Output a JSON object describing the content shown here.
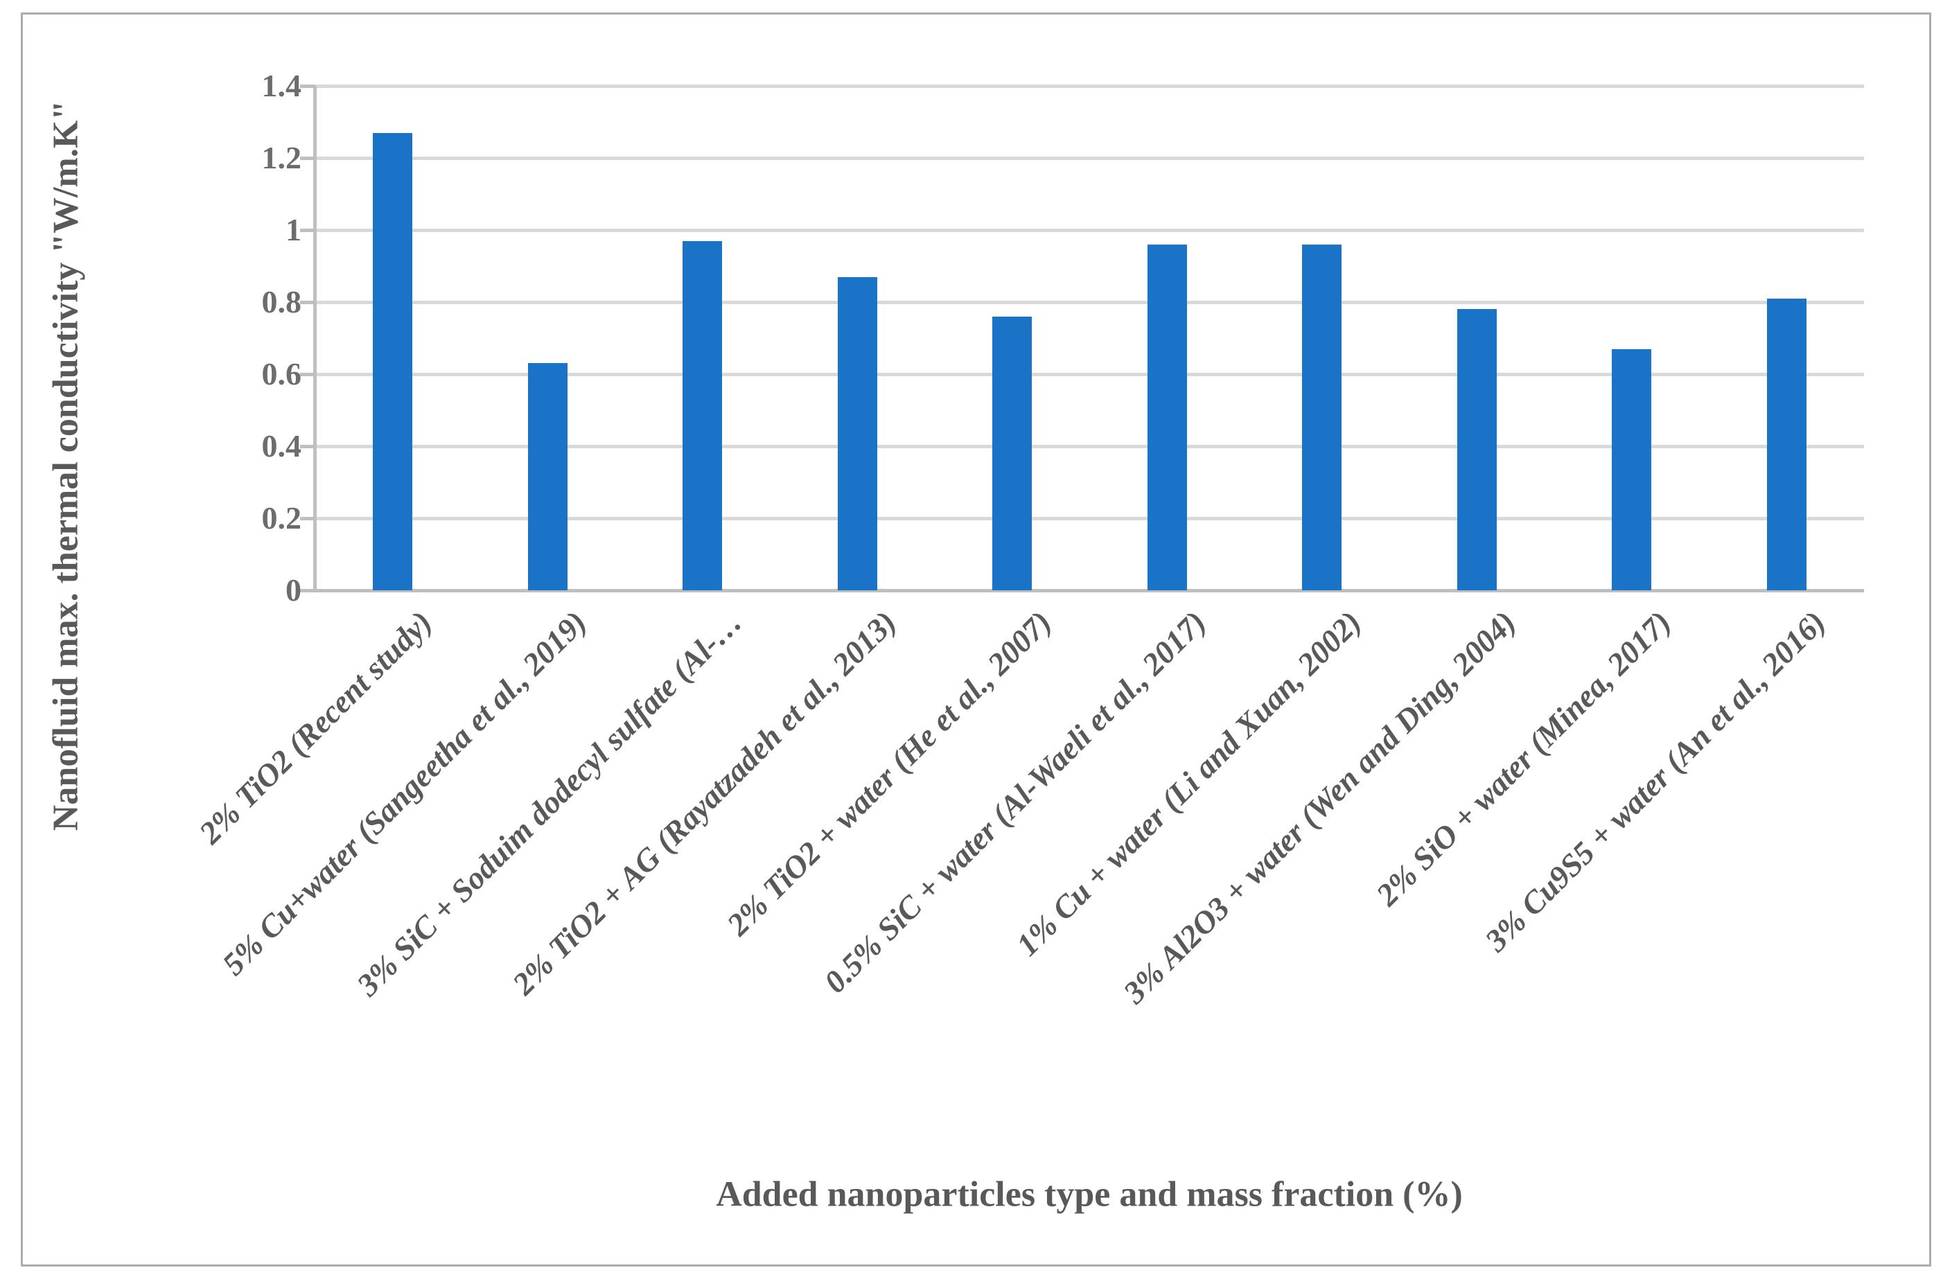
{
  "chart_data": {
    "type": "bar",
    "title": "",
    "xlabel": "Added nanoparticles type and mass fraction (%)",
    "ylabel": "Nanofluid max. thermal conductivity \"W/m.K\"",
    "categories": [
      "2% TiO2 (Recent study)",
      "5% Cu+water (Sangeetha et al., 2019)",
      "3% SiC + Soduim dodecyl sulfate (Al-…",
      "2% TiO2 + AG (Rayatzadeh et al., 2013)",
      "2% TiO2 + water (He et al., 2007)",
      "0.5% SiC + water (Al-Waeli et al., 2017)",
      "1% Cu + water (Li and Xuan, 2002)",
      "3% Al2O3 + water (Wen and Ding, 2004)",
      "2% SiO + water (Minea, 2017)",
      "3% Cu9S5 + water (An et al., 2016)"
    ],
    "values": [
      1.27,
      0.63,
      0.97,
      0.87,
      0.76,
      0.96,
      0.96,
      0.78,
      0.67,
      0.81
    ],
    "ylim": [
      0,
      1.4
    ],
    "ytick_interval": 0.2,
    "yticks": [
      "1.4",
      "1.2",
      "1",
      "0.8",
      "0.6",
      "0.4",
      "0.2",
      "0"
    ],
    "grid": true,
    "legend": "none",
    "bar_color": "#1b73c8",
    "gridline_color": "#d9d9d9",
    "axis_color": "#bfbfbf",
    "tick_label_color": "#6e6b6b",
    "text_color": "#595959",
    "border_color": "#ababab"
  }
}
